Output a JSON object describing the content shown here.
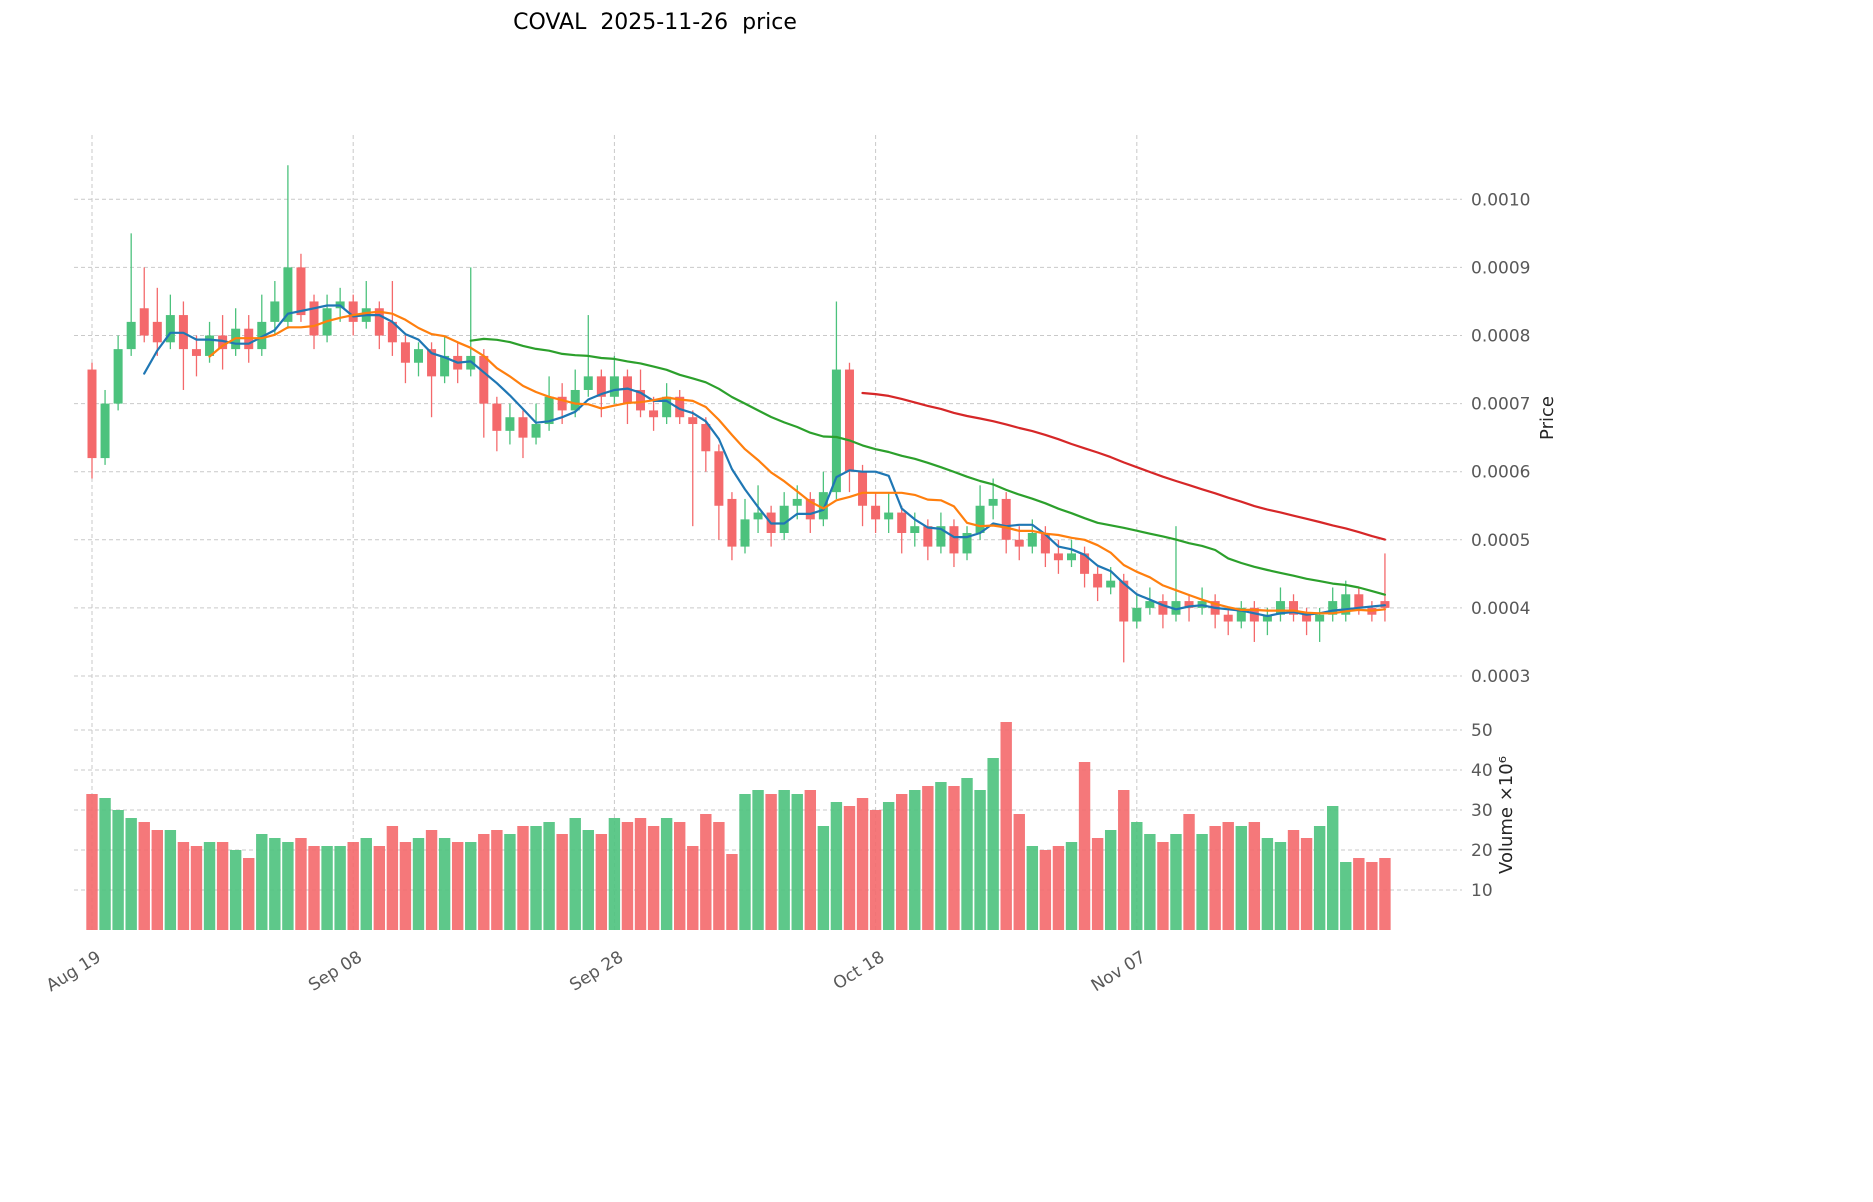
{
  "chart_data": {
    "type": "candlestick",
    "title": "COVAL  2025-11-26  price",
    "ylabel_price": "Price",
    "ylabel_volume": "Volume ×10⁶",
    "legend_position": "none",
    "grid": true,
    "up_color": "#4cc27d",
    "down_color": "#f4696b",
    "price_axis_range": [
      0.0003,
      0.001
    ],
    "volume_axis_range": [
      0,
      55
    ],
    "price_ticks": [
      0.0003,
      0.0004,
      0.0005,
      0.0006,
      0.0007,
      0.0008,
      0.0009,
      0.001
    ],
    "price_tick_labels": [
      "0.0003",
      "0.0004",
      "0.0005",
      "0.0006",
      "0.0007",
      "0.0008",
      "0.0009",
      "0.0010"
    ],
    "volume_ticks": [
      10,
      20,
      30,
      40,
      50
    ],
    "x_ticks": [
      {
        "index": 0,
        "label": "Aug 19"
      },
      {
        "index": 20,
        "label": "Sep 08"
      },
      {
        "index": 40,
        "label": "Sep 28"
      },
      {
        "index": 60,
        "label": "Oct 18"
      },
      {
        "index": 80,
        "label": "Nov 07"
      }
    ],
    "ma_lines": [
      {
        "period": 5,
        "color": "#1f77b4"
      },
      {
        "period": 10,
        "color": "#ff7f0e"
      },
      {
        "period": 30,
        "color": "#2ca02c"
      },
      {
        "period": 60,
        "color": "#d62728"
      }
    ],
    "columns": [
      "date",
      "open",
      "high",
      "low",
      "close",
      "volume_millions"
    ],
    "ohlcv": [
      [
        "2025-08-19",
        0.00075,
        0.00076,
        0.00059,
        0.00062,
        34
      ],
      [
        "2025-08-20",
        0.00062,
        0.00072,
        0.00061,
        0.0007,
        33
      ],
      [
        "2025-08-21",
        0.0007,
        0.0008,
        0.00069,
        0.00078,
        30
      ],
      [
        "2025-08-22",
        0.00078,
        0.00095,
        0.00077,
        0.00082,
        28
      ],
      [
        "2025-08-23",
        0.00084,
        0.0009,
        0.00079,
        0.0008,
        27
      ],
      [
        "2025-08-24",
        0.00082,
        0.00087,
        0.00077,
        0.00079,
        25
      ],
      [
        "2025-08-25",
        0.00079,
        0.00086,
        0.00078,
        0.00083,
        25
      ],
      [
        "2025-08-26",
        0.00083,
        0.00085,
        0.00072,
        0.00078,
        22
      ],
      [
        "2025-08-27",
        0.00078,
        0.0008,
        0.00074,
        0.00077,
        21
      ],
      [
        "2025-08-28",
        0.00077,
        0.00082,
        0.00076,
        0.0008,
        22
      ],
      [
        "2025-08-29",
        0.0008,
        0.00083,
        0.00075,
        0.00078,
        22
      ],
      [
        "2025-08-30",
        0.00078,
        0.00084,
        0.00077,
        0.00081,
        20
      ],
      [
        "2025-08-31",
        0.00081,
        0.00083,
        0.00076,
        0.00078,
        18
      ],
      [
        "2025-09-01",
        0.00078,
        0.00086,
        0.00077,
        0.00082,
        24
      ],
      [
        "2025-09-02",
        0.00082,
        0.00088,
        0.0008,
        0.00085,
        23
      ],
      [
        "2025-09-03",
        0.00082,
        0.00105,
        0.00081,
        0.0009,
        22
      ],
      [
        "2025-09-04",
        0.0009,
        0.00092,
        0.00082,
        0.00083,
        23
      ],
      [
        "2025-09-05",
        0.00085,
        0.00086,
        0.00078,
        0.0008,
        21
      ],
      [
        "2025-09-06",
        0.0008,
        0.00086,
        0.00079,
        0.00084,
        21
      ],
      [
        "2025-09-07",
        0.00084,
        0.00087,
        0.00082,
        0.00085,
        21
      ],
      [
        "2025-09-08",
        0.00085,
        0.00086,
        0.0008,
        0.00082,
        22
      ],
      [
        "2025-09-09",
        0.00082,
        0.00088,
        0.00081,
        0.00084,
        23
      ],
      [
        "2025-09-10",
        0.00084,
        0.00085,
        0.00078,
        0.0008,
        21
      ],
      [
        "2025-09-11",
        0.00082,
        0.00088,
        0.00077,
        0.00079,
        26
      ],
      [
        "2025-09-12",
        0.00079,
        0.0008,
        0.00073,
        0.00076,
        22
      ],
      [
        "2025-09-13",
        0.00076,
        0.00079,
        0.00074,
        0.00078,
        23
      ],
      [
        "2025-09-14",
        0.00078,
        0.00079,
        0.00068,
        0.00074,
        25
      ],
      [
        "2025-09-15",
        0.00074,
        0.0008,
        0.00073,
        0.00077,
        23
      ],
      [
        "2025-09-16",
        0.00077,
        0.00079,
        0.00073,
        0.00075,
        22
      ],
      [
        "2025-09-17",
        0.00075,
        0.0009,
        0.00074,
        0.00077,
        22
      ],
      [
        "2025-09-18",
        0.00077,
        0.00078,
        0.00065,
        0.0007,
        24
      ],
      [
        "2025-09-19",
        0.0007,
        0.00071,
        0.00063,
        0.00066,
        25
      ],
      [
        "2025-09-20",
        0.00066,
        0.0007,
        0.00064,
        0.00068,
        24
      ],
      [
        "2025-09-21",
        0.00068,
        0.00069,
        0.00062,
        0.00065,
        26
      ],
      [
        "2025-09-22",
        0.00065,
        0.0007,
        0.00064,
        0.00067,
        26
      ],
      [
        "2025-09-23",
        0.00067,
        0.00074,
        0.00066,
        0.00071,
        27
      ],
      [
        "2025-09-24",
        0.00071,
        0.00073,
        0.00067,
        0.00069,
        24
      ],
      [
        "2025-09-25",
        0.00069,
        0.00075,
        0.00068,
        0.00072,
        28
      ],
      [
        "2025-09-26",
        0.00072,
        0.00083,
        0.00071,
        0.00074,
        25
      ],
      [
        "2025-09-27",
        0.00074,
        0.00075,
        0.00068,
        0.00071,
        24
      ],
      [
        "2025-09-28",
        0.00071,
        0.00077,
        0.0007,
        0.00074,
        28
      ],
      [
        "2025-09-29",
        0.00074,
        0.00075,
        0.00067,
        0.0007,
        27
      ],
      [
        "2025-09-30",
        0.00072,
        0.00075,
        0.00068,
        0.00069,
        28
      ],
      [
        "2025-10-01",
        0.00069,
        0.00071,
        0.00066,
        0.00068,
        26
      ],
      [
        "2025-10-02",
        0.00068,
        0.00073,
        0.00067,
        0.00071,
        28
      ],
      [
        "2025-10-03",
        0.00071,
        0.00072,
        0.00067,
        0.00068,
        27
      ],
      [
        "2025-10-04",
        0.00068,
        0.00069,
        0.00052,
        0.00067,
        21
      ],
      [
        "2025-10-05",
        0.00067,
        0.00068,
        0.0006,
        0.00063,
        29
      ],
      [
        "2025-10-06",
        0.00063,
        0.00064,
        0.0005,
        0.00055,
        27
      ],
      [
        "2025-10-07",
        0.00056,
        0.00057,
        0.00047,
        0.00049,
        19
      ],
      [
        "2025-10-08",
        0.00049,
        0.00056,
        0.00048,
        0.00053,
        34
      ],
      [
        "2025-10-09",
        0.00053,
        0.00058,
        0.00051,
        0.00054,
        35
      ],
      [
        "2025-10-10",
        0.00054,
        0.00055,
        0.00049,
        0.00051,
        34
      ],
      [
        "2025-10-11",
        0.00051,
        0.00057,
        0.0005,
        0.00055,
        35
      ],
      [
        "2025-10-12",
        0.00055,
        0.00058,
        0.00053,
        0.00056,
        34
      ],
      [
        "2025-10-13",
        0.00056,
        0.00057,
        0.00051,
        0.00053,
        35
      ],
      [
        "2025-10-14",
        0.00053,
        0.0006,
        0.00052,
        0.00057,
        26
      ],
      [
        "2025-10-15",
        0.00057,
        0.00085,
        0.00056,
        0.00075,
        32
      ],
      [
        "2025-10-16",
        0.00075,
        0.00076,
        0.00057,
        0.0006,
        31
      ],
      [
        "2025-10-17",
        0.0006,
        0.00061,
        0.00052,
        0.00055,
        33
      ],
      [
        "2025-10-18",
        0.00055,
        0.00057,
        0.00051,
        0.00053,
        30
      ],
      [
        "2025-10-19",
        0.00053,
        0.00057,
        0.00051,
        0.00054,
        32
      ],
      [
        "2025-10-20",
        0.00054,
        0.00055,
        0.00048,
        0.00051,
        34
      ],
      [
        "2025-10-21",
        0.00051,
        0.00054,
        0.00049,
        0.00052,
        35
      ],
      [
        "2025-10-22",
        0.00052,
        0.00053,
        0.00047,
        0.00049,
        36
      ],
      [
        "2025-10-23",
        0.00049,
        0.00054,
        0.00048,
        0.00052,
        37
      ],
      [
        "2025-10-24",
        0.00052,
        0.00053,
        0.00046,
        0.00048,
        36
      ],
      [
        "2025-10-25",
        0.00048,
        0.00052,
        0.00047,
        0.00051,
        38
      ],
      [
        "2025-10-26",
        0.00051,
        0.00058,
        0.0005,
        0.00055,
        35
      ],
      [
        "2025-10-27",
        0.00055,
        0.00059,
        0.00053,
        0.00056,
        43
      ],
      [
        "2025-10-28",
        0.00056,
        0.00057,
        0.00048,
        0.0005,
        52
      ],
      [
        "2025-10-29",
        0.0005,
        0.00052,
        0.00047,
        0.00049,
        29
      ],
      [
        "2025-10-30",
        0.00049,
        0.00053,
        0.00048,
        0.00051,
        21
      ],
      [
        "2025-10-31",
        0.00051,
        0.00052,
        0.00046,
        0.00048,
        20
      ],
      [
        "2025-11-01",
        0.00048,
        0.0005,
        0.00045,
        0.00047,
        21
      ],
      [
        "2025-11-02",
        0.00047,
        0.0005,
        0.00046,
        0.00048,
        22
      ],
      [
        "2025-11-03",
        0.00048,
        0.00049,
        0.00043,
        0.00045,
        42
      ],
      [
        "2025-11-04",
        0.00045,
        0.00046,
        0.00041,
        0.00043,
        23
      ],
      [
        "2025-11-05",
        0.00043,
        0.00046,
        0.00042,
        0.00044,
        25
      ],
      [
        "2025-11-06",
        0.00044,
        0.00045,
        0.00032,
        0.00038,
        35
      ],
      [
        "2025-11-07",
        0.00038,
        0.00042,
        0.00037,
        0.0004,
        27
      ],
      [
        "2025-11-08",
        0.0004,
        0.00043,
        0.00039,
        0.00041,
        24
      ],
      [
        "2025-11-09",
        0.00041,
        0.00042,
        0.00037,
        0.00039,
        22
      ],
      [
        "2025-11-10",
        0.00039,
        0.00052,
        0.00038,
        0.00041,
        24
      ],
      [
        "2025-11-11",
        0.00041,
        0.00042,
        0.00038,
        0.0004,
        29
      ],
      [
        "2025-11-12",
        0.0004,
        0.00043,
        0.00039,
        0.00041,
        24
      ],
      [
        "2025-11-13",
        0.00041,
        0.00042,
        0.00037,
        0.00039,
        26
      ],
      [
        "2025-11-14",
        0.00039,
        0.0004,
        0.00036,
        0.00038,
        27
      ],
      [
        "2025-11-15",
        0.00038,
        0.00041,
        0.00037,
        0.0004,
        26
      ],
      [
        "2025-11-16",
        0.0004,
        0.00041,
        0.00035,
        0.00038,
        27
      ],
      [
        "2025-11-17",
        0.00038,
        0.0004,
        0.00036,
        0.00039,
        23
      ],
      [
        "2025-11-18",
        0.00039,
        0.00043,
        0.00038,
        0.00041,
        22
      ],
      [
        "2025-11-19",
        0.00041,
        0.00042,
        0.00038,
        0.00039,
        25
      ],
      [
        "2025-11-20",
        0.00039,
        0.0004,
        0.00036,
        0.00038,
        23
      ],
      [
        "2025-11-21",
        0.00038,
        0.0004,
        0.00035,
        0.00039,
        26
      ],
      [
        "2025-11-22",
        0.00039,
        0.00043,
        0.00038,
        0.00041,
        31
      ],
      [
        "2025-11-23",
        0.00039,
        0.00044,
        0.00038,
        0.00042,
        17
      ],
      [
        "2025-11-24",
        0.00042,
        0.00043,
        0.00039,
        0.0004,
        18
      ],
      [
        "2025-11-25",
        0.0004,
        0.00041,
        0.00038,
        0.00039,
        17
      ],
      [
        "2025-11-26",
        0.00041,
        0.00048,
        0.00038,
        0.0004,
        18
      ]
    ]
  }
}
